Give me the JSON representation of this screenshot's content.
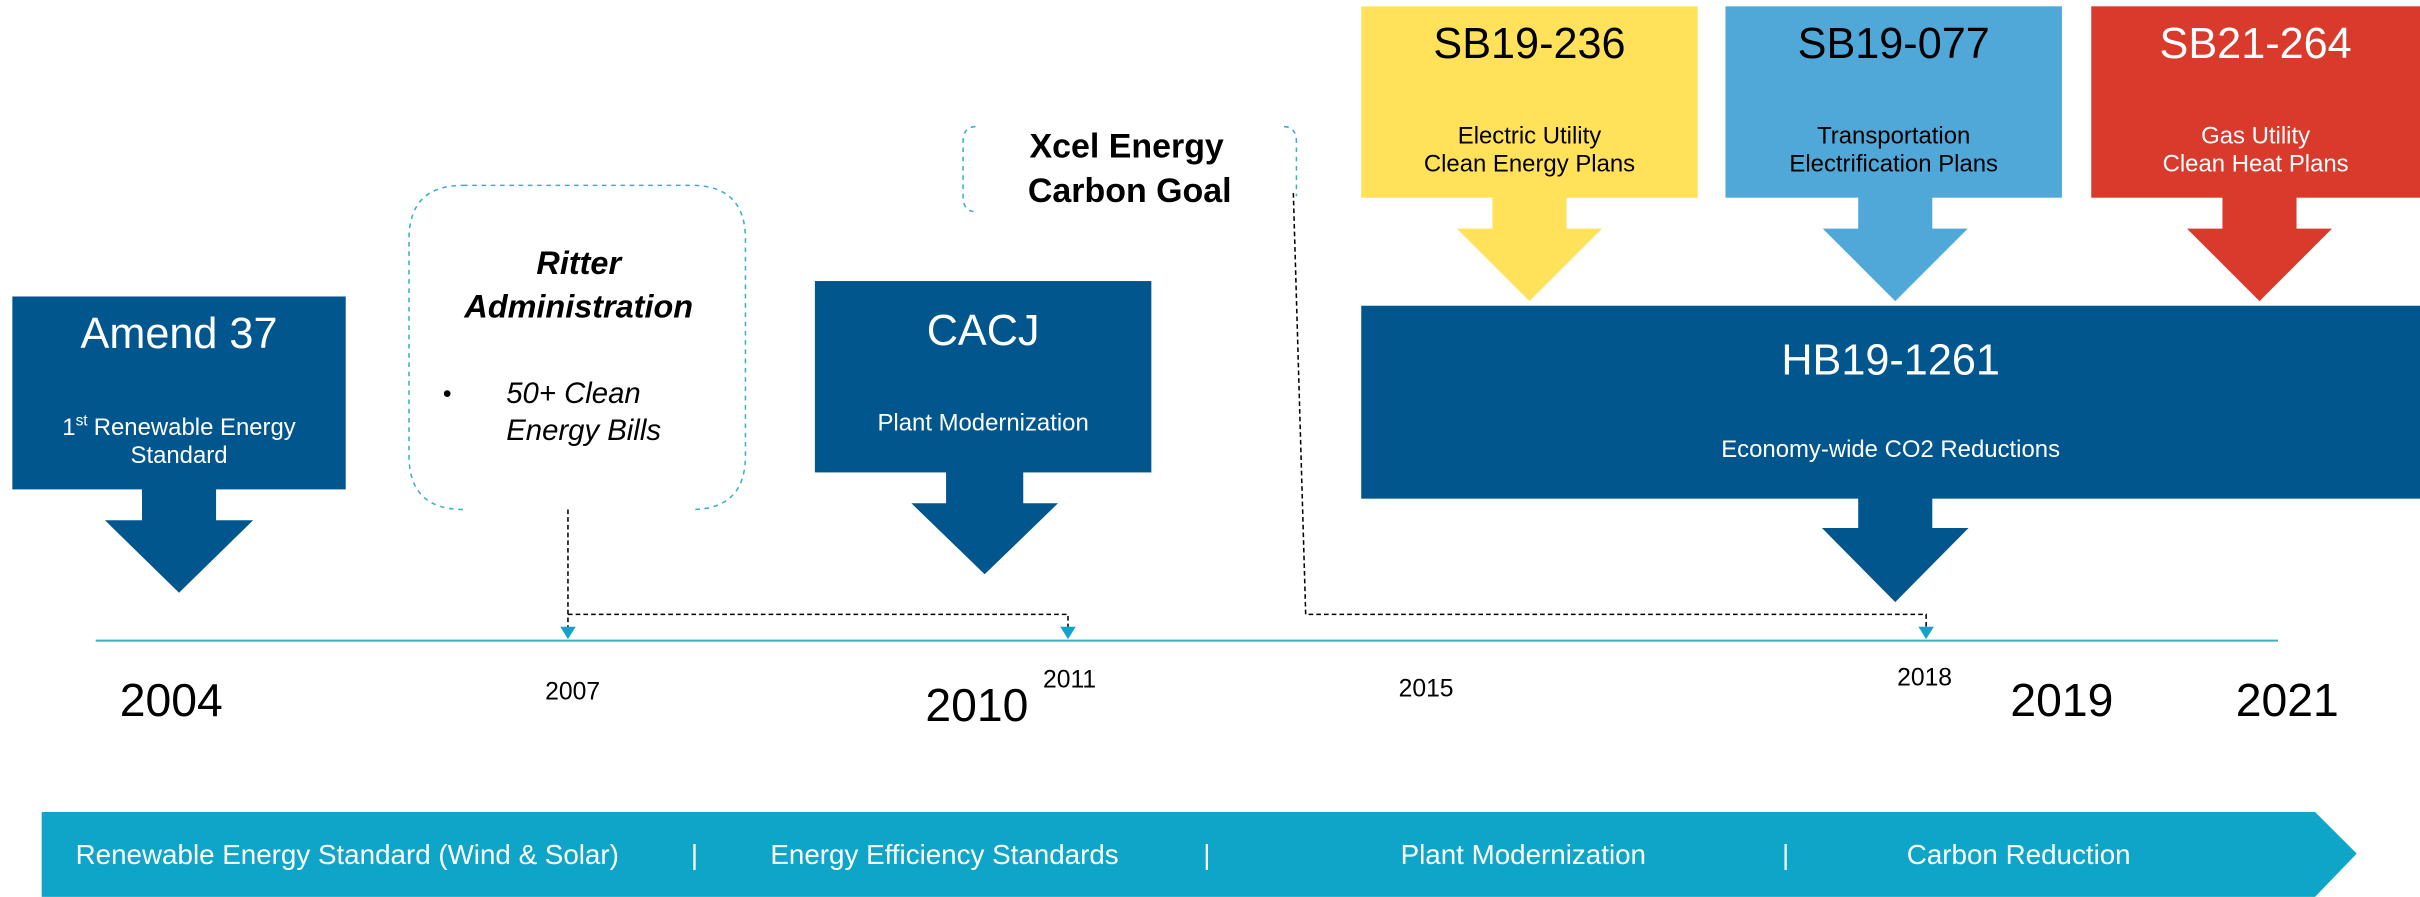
{
  "boxes": [
    {
      "title": "Amend 37",
      "ordinal": "1",
      "ordinal_suffix": "st",
      "lines": [
        "Renewable Energy",
        "Standard"
      ]
    },
    {
      "title": "CACJ",
      "lines": [
        "Plant Modernization"
      ]
    },
    {
      "title": "SB19-236",
      "lines": [
        "Electric Utility",
        "Clean Energy Plans"
      ]
    },
    {
      "title": "SB19-077",
      "lines": [
        "Transportation",
        "Electrification Plans"
      ]
    },
    {
      "title": "SB21-264",
      "lines": [
        "Gas Utility",
        "Clean Heat Plans"
      ]
    },
    {
      "title": "HB19-1261",
      "lines": [
        "Economy-wide CO2 Reductions"
      ]
    }
  ],
  "callouts": [
    {
      "title_lines": [
        "Ritter",
        "Administration"
      ],
      "bullet": "•",
      "bullet_lines": [
        "50+ Clean",
        "Energy Bills"
      ]
    },
    {
      "title_lines": [
        "Xcel Energy",
        "Carbon Goal"
      ]
    }
  ],
  "years": [
    "2004",
    "2007",
    "2010",
    "2011",
    "2015",
    "2018",
    "2019",
    "2021"
  ],
  "banner": {
    "segments": [
      "Renewable Energy Standard (Wind & Solar)",
      "Energy Efficiency  Standards",
      "Plant Modernization",
      "Carbon Reduction"
    ],
    "separator": "|"
  }
}
